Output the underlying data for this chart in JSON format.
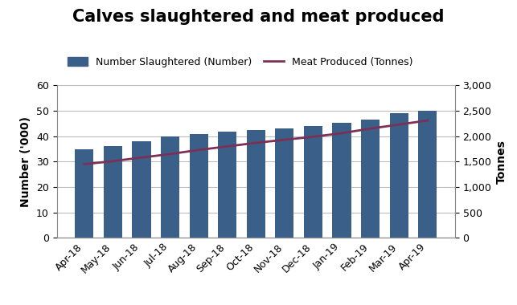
{
  "title": "Calves slaughtered and meat produced",
  "categories": [
    "Apr-18",
    "May-18",
    "Jun-18",
    "Jul-18",
    "Aug-18",
    "Sep-18",
    "Oct-18",
    "Nov-18",
    "Dec-18",
    "Jan-19",
    "Feb-19",
    "Mar-19",
    "Apr-19"
  ],
  "bar_values": [
    35.0,
    36.2,
    38.0,
    39.8,
    41.0,
    41.8,
    42.3,
    43.2,
    44.1,
    45.3,
    46.7,
    49.0,
    50.1
  ],
  "line_values": [
    1450,
    1510,
    1580,
    1650,
    1730,
    1800,
    1870,
    1930,
    1990,
    2060,
    2150,
    2230,
    2310
  ],
  "bar_color": "#3A6089",
  "line_color": "#7B3055",
  "ylabel_left": "Number ('000)",
  "ylabel_right": "Tonnes",
  "ylim_left": [
    0,
    60
  ],
  "ylim_right": [
    0,
    3000
  ],
  "yticks_left": [
    0,
    10,
    20,
    30,
    40,
    50,
    60
  ],
  "yticks_right": [
    0,
    500,
    1000,
    1500,
    2000,
    2500,
    3000
  ],
  "legend_bar": "Number Slaughtered (Number)",
  "legend_line": "Meat Produced (Tonnes)",
  "background_color": "#ffffff",
  "grid_color": "#bbbbbb",
  "title_fontsize": 15,
  "label_fontsize": 10,
  "tick_fontsize": 9,
  "legend_fontsize": 9
}
